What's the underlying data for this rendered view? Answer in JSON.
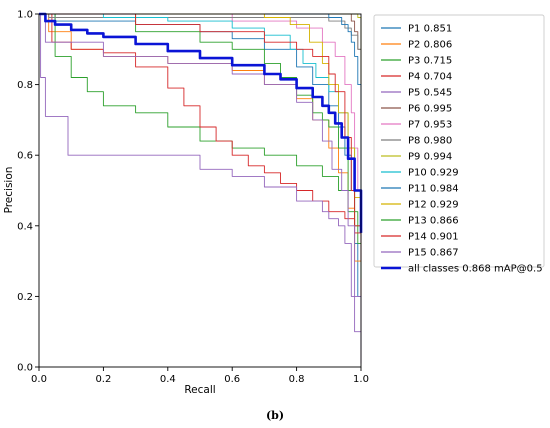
{
  "chart_data": {
    "type": "line",
    "xlabel": "Recall",
    "ylabel": "Precision",
    "xlim": [
      0.0,
      1.0
    ],
    "ylim": [
      0.0,
      1.0
    ],
    "xticks": [
      "0.0",
      "0.2",
      "0.4",
      "0.6",
      "0.8",
      "1.0"
    ],
    "yticks": [
      "0.0",
      "0.2",
      "0.4",
      "0.6",
      "0.8",
      "1.0"
    ],
    "grid": false,
    "legend_position": "outside-right",
    "caption": "(b)",
    "series": [
      {
        "name": "P1 0.851",
        "color": "#1f77b4",
        "x": [
          0,
          0.05,
          0.3,
          0.5,
          0.6,
          0.7,
          0.8,
          0.85,
          0.9,
          0.93,
          0.95,
          0.97,
          0.98,
          0.99,
          1.0
        ],
        "y": [
          1.0,
          0.98,
          0.97,
          0.95,
          0.93,
          0.9,
          0.85,
          0.8,
          0.74,
          0.68,
          0.6,
          0.5,
          0.35,
          0.2,
          0.05
        ]
      },
      {
        "name": "P2 0.806",
        "color": "#ff7f0e",
        "x": [
          0,
          0.03,
          0.1,
          0.2,
          0.4,
          0.6,
          0.7,
          0.8,
          0.85,
          0.9,
          0.93,
          0.96,
          0.98,
          1.0
        ],
        "y": [
          1.0,
          0.95,
          0.9,
          0.88,
          0.86,
          0.84,
          0.8,
          0.76,
          0.7,
          0.62,
          0.55,
          0.45,
          0.3,
          0.1
        ]
      },
      {
        "name": "P3 0.715",
        "color": "#2ca02c",
        "x": [
          0,
          0.05,
          0.1,
          0.15,
          0.2,
          0.3,
          0.4,
          0.5,
          0.6,
          0.7,
          0.8,
          0.88,
          0.93,
          0.96,
          0.99,
          1.0
        ],
        "y": [
          1.0,
          0.88,
          0.82,
          0.78,
          0.74,
          0.72,
          0.68,
          0.64,
          0.62,
          0.6,
          0.57,
          0.54,
          0.5,
          0.44,
          0.35,
          0.2
        ]
      },
      {
        "name": "P4 0.704",
        "color": "#d62728",
        "x": [
          0,
          0.04,
          0.1,
          0.2,
          0.3,
          0.4,
          0.45,
          0.5,
          0.55,
          0.6,
          0.65,
          0.7,
          0.75,
          0.8,
          0.85,
          0.9,
          0.95,
          0.98,
          1.0
        ],
        "y": [
          1.0,
          0.92,
          0.9,
          0.89,
          0.85,
          0.79,
          0.74,
          0.68,
          0.64,
          0.6,
          0.57,
          0.55,
          0.52,
          0.5,
          0.47,
          0.44,
          0.42,
          0.38,
          0.15
        ]
      },
      {
        "name": "P5 0.545",
        "color": "#9467bd",
        "x": [
          0,
          0.005,
          0.02,
          0.08,
          0.09,
          0.3,
          0.5,
          0.6,
          0.7,
          0.8,
          0.88,
          0.9,
          0.93,
          0.95,
          0.97,
          0.98,
          1.0
        ],
        "y": [
          1.0,
          0.82,
          0.71,
          0.71,
          0.6,
          0.6,
          0.56,
          0.54,
          0.51,
          0.47,
          0.44,
          0.42,
          0.4,
          0.35,
          0.2,
          0.1,
          0.01
        ]
      },
      {
        "name": "P6 0.995",
        "color": "#8c564b",
        "x": [
          0,
          0.96,
          0.97,
          0.98,
          0.99,
          1.0
        ],
        "y": [
          1.0,
          1.0,
          0.98,
          0.95,
          0.9,
          0.6
        ]
      },
      {
        "name": "P7 0.953",
        "color": "#e377c2",
        "x": [
          0,
          0.6,
          0.8,
          0.88,
          0.92,
          0.95,
          0.97,
          0.98,
          0.99,
          1.0
        ],
        "y": [
          1.0,
          0.98,
          0.96,
          0.92,
          0.88,
          0.8,
          0.72,
          0.62,
          0.5,
          0.3
        ]
      },
      {
        "name": "P8 0.980",
        "color": "#7f7f7f",
        "x": [
          0,
          0.03,
          0.8,
          0.9,
          0.95,
          0.97,
          0.99,
          1.0
        ],
        "y": [
          1.0,
          0.99,
          0.99,
          0.98,
          0.96,
          0.94,
          0.9,
          0.7
        ]
      },
      {
        "name": "P9 0.994",
        "color": "#bcbd22",
        "x": [
          0,
          0.98,
          0.99,
          1.0,
          1.0
        ],
        "y": [
          1.0,
          1.0,
          0.99,
          0.98,
          0.4
        ]
      },
      {
        "name": "P10 0.929",
        "color": "#17becf",
        "x": [
          0,
          0.2,
          0.4,
          0.6,
          0.7,
          0.78,
          0.82,
          0.86,
          0.9,
          0.93,
          0.96,
          0.98,
          1.0
        ],
        "y": [
          1.0,
          0.99,
          0.98,
          0.96,
          0.94,
          0.9,
          0.86,
          0.82,
          0.78,
          0.72,
          0.62,
          0.5,
          0.3
        ]
      },
      {
        "name": "P11 0.984",
        "color": "#1f77b4",
        "x": [
          0,
          0.9,
          0.94,
          0.96,
          0.97,
          0.98,
          0.99,
          1.0
        ],
        "y": [
          1.0,
          0.99,
          0.97,
          0.95,
          0.92,
          0.88,
          0.8,
          0.5
        ]
      },
      {
        "name": "P12 0.929",
        "color": "#d4b200",
        "x": [
          0,
          0.7,
          0.78,
          0.84,
          0.88,
          0.9,
          0.93,
          0.96,
          0.98,
          1.0
        ],
        "y": [
          1.0,
          0.99,
          0.97,
          0.92,
          0.86,
          0.8,
          0.72,
          0.62,
          0.48,
          0.3
        ]
      },
      {
        "name": "P13 0.866",
        "color": "#2ca02c",
        "x": [
          0,
          0.3,
          0.5,
          0.6,
          0.7,
          0.75,
          0.8,
          0.85,
          0.88,
          0.9,
          0.93,
          0.96,
          0.98,
          1.0
        ],
        "y": [
          1.0,
          0.95,
          0.92,
          0.9,
          0.86,
          0.82,
          0.77,
          0.72,
          0.7,
          0.68,
          0.62,
          0.5,
          0.4,
          0.25
        ]
      },
      {
        "name": "P14 0.901",
        "color": "#d62728",
        "x": [
          0,
          0.3,
          0.5,
          0.7,
          0.8,
          0.85,
          0.9,
          0.92,
          0.95,
          0.97,
          0.98,
          1.0
        ],
        "y": [
          1.0,
          0.97,
          0.95,
          0.92,
          0.9,
          0.88,
          0.83,
          0.78,
          0.65,
          0.5,
          0.4,
          0.3
        ]
      },
      {
        "name": "P15 0.867",
        "color": "#9467bd",
        "x": [
          0,
          0.02,
          0.2,
          0.4,
          0.6,
          0.7,
          0.8,
          0.85,
          0.88,
          0.91,
          0.94,
          0.96,
          0.98,
          1.0
        ],
        "y": [
          1.0,
          0.92,
          0.88,
          0.86,
          0.83,
          0.8,
          0.75,
          0.7,
          0.64,
          0.56,
          0.5,
          0.4,
          0.2,
          0.05
        ]
      },
      {
        "name": "all classes 0.868 mAP@0.5",
        "color": "#0a14d6",
        "bold": true,
        "x": [
          0,
          0.02,
          0.05,
          0.1,
          0.15,
          0.2,
          0.3,
          0.4,
          0.5,
          0.6,
          0.7,
          0.75,
          0.8,
          0.85,
          0.88,
          0.9,
          0.92,
          0.94,
          0.96,
          0.98,
          1.0
        ],
        "y": [
          1.0,
          0.98,
          0.97,
          0.955,
          0.945,
          0.935,
          0.915,
          0.895,
          0.875,
          0.855,
          0.83,
          0.815,
          0.79,
          0.765,
          0.74,
          0.72,
          0.69,
          0.65,
          0.59,
          0.5,
          0.38
        ]
      }
    ]
  }
}
